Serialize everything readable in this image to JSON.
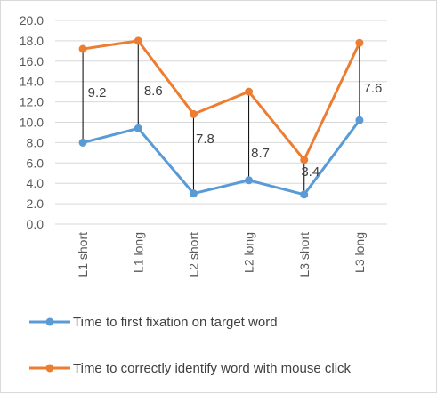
{
  "chart_data": {
    "type": "line",
    "categories": [
      "L1 short",
      "L1 long",
      "L2 short",
      "L2 long",
      "L3 short",
      "L3 long"
    ],
    "ylim": [
      0,
      20
    ],
    "yticks": [
      "0.0",
      "2.0",
      "4.0",
      "6.0",
      "8.0",
      "10.0",
      "12.0",
      "14.0",
      "16.0",
      "18.0",
      "20.0"
    ],
    "grid": true,
    "legend_position": "bottom",
    "series": [
      {
        "name": "Time to first fixation on target word",
        "color": "#5b9bd5",
        "values": [
          8.0,
          9.4,
          3.0,
          4.3,
          2.9,
          10.2
        ]
      },
      {
        "name": "Time to correctly identify word with mouse click",
        "color": "#ed7d31",
        "values": [
          17.2,
          18.0,
          10.8,
          13.0,
          6.3,
          17.8
        ]
      }
    ],
    "difference_labels": [
      "9.2",
      "8.6",
      "7.8",
      "8.7",
      "3.4",
      "7.6"
    ]
  }
}
